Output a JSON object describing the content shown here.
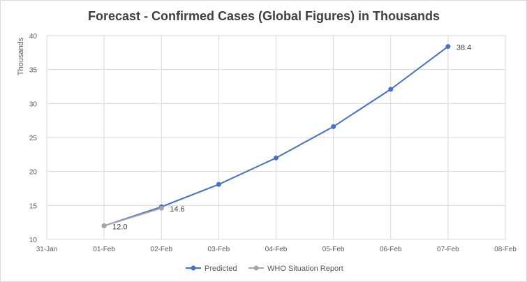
{
  "chart_data": {
    "type": "line",
    "title": "Forecast - Confirmed Cases (Global Figures) in Thousands",
    "ylabel": "Thousands",
    "xlabel": "",
    "x_ticks": [
      "31-Jan",
      "01-Feb",
      "02-Feb",
      "03-Feb",
      "04-Feb",
      "05-Feb",
      "06-Feb",
      "07-Feb",
      "08-Feb"
    ],
    "ylim": [
      10,
      40
    ],
    "y_ticks": [
      10,
      15,
      20,
      25,
      30,
      35,
      40
    ],
    "grid": true,
    "legend_position": "bottom",
    "series": [
      {
        "name": "Predicted",
        "color": "#4472c4",
        "x": [
          "01-Feb",
          "02-Feb",
          "03-Feb",
          "04-Feb",
          "05-Feb",
          "06-Feb",
          "07-Feb"
        ],
        "values": [
          12.0,
          14.8,
          18.1,
          22.0,
          26.6,
          32.1,
          38.4
        ]
      },
      {
        "name": "WHO Situation Report",
        "color": "#a5a5a5",
        "x": [
          "01-Feb",
          "02-Feb"
        ],
        "values": [
          12.0,
          14.6
        ]
      }
    ],
    "data_labels": [
      {
        "series": 1,
        "index": 0,
        "text": "12.0"
      },
      {
        "series": 1,
        "index": 1,
        "text": "14.6"
      },
      {
        "series": 0,
        "index": 6,
        "text": "38.4"
      }
    ]
  }
}
